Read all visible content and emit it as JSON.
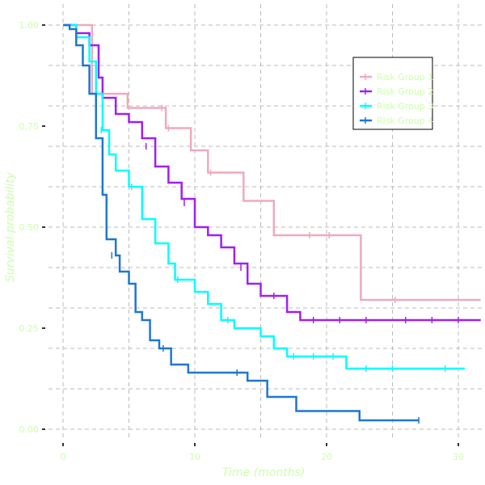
{
  "chart_data": {
    "type": "line",
    "subtype": "kaplan-meier step",
    "xlabel": "Time (months)",
    "ylabel": "Survival probability",
    "xlim": [
      0,
      31.7
    ],
    "ylim": [
      0,
      1
    ],
    "xticks": [
      "0",
      "10",
      "20",
      "30"
    ],
    "yticks": [
      "0.00",
      "0.25",
      "0.50",
      "0.75",
      "1.00"
    ],
    "grid": true,
    "legend_position": "top-right",
    "text_color": "#ccffaa",
    "series": [
      {
        "name": "Risk Group 1",
        "color": "#eeaabb",
        "points": [
          [
            0,
            1
          ],
          [
            2.2,
            0.83
          ],
          [
            4.9,
            0.795
          ],
          [
            7.8,
            0.745
          ],
          [
            9.7,
            0.69
          ],
          [
            11,
            0.635
          ],
          [
            13.7,
            0.565
          ],
          [
            16,
            0.48
          ],
          [
            22.6,
            0.32
          ],
          [
            31.7,
            0.32
          ]
        ],
        "censor": [
          [
            7.5,
            0.795
          ],
          [
            8,
            0.745
          ],
          [
            11.2,
            0.635
          ],
          [
            18.7,
            0.48
          ],
          [
            20.2,
            0.48
          ],
          [
            25.2,
            0.32
          ]
        ]
      },
      {
        "name": "Risk Group 2",
        "color": "#a020f0",
        "points": [
          [
            0,
            1
          ],
          [
            1,
            0.98
          ],
          [
            2,
            0.95
          ],
          [
            2.7,
            0.87
          ],
          [
            3,
            0.82
          ],
          [
            4,
            0.78
          ],
          [
            5,
            0.76
          ],
          [
            6,
            0.72
          ],
          [
            7,
            0.65
          ],
          [
            8,
            0.61
          ],
          [
            9,
            0.57
          ],
          [
            10,
            0.5
          ],
          [
            11,
            0.48
          ],
          [
            12,
            0.45
          ],
          [
            13,
            0.41
          ],
          [
            14,
            0.36
          ],
          [
            15,
            0.33
          ],
          [
            16.5,
            0.33
          ],
          [
            17,
            0.29
          ],
          [
            18,
            0.27
          ],
          [
            31.7,
            0.27
          ]
        ],
        "censor": [
          [
            6.3,
            0.7
          ],
          [
            9.2,
            0.56
          ],
          [
            13.5,
            0.4
          ],
          [
            16,
            0.33
          ],
          [
            19,
            0.27
          ],
          [
            21,
            0.27
          ],
          [
            23,
            0.27
          ],
          [
            26,
            0.27
          ],
          [
            28,
            0.27
          ],
          [
            30,
            0.27
          ]
        ]
      },
      {
        "name": "Risk Group 3",
        "color": "#00ffff",
        "points": [
          [
            0,
            1
          ],
          [
            1,
            0.97
          ],
          [
            2,
            0.91
          ],
          [
            2.5,
            0.83
          ],
          [
            3,
            0.74
          ],
          [
            3.5,
            0.68
          ],
          [
            4,
            0.64
          ],
          [
            5,
            0.6
          ],
          [
            6,
            0.52
          ],
          [
            7,
            0.46
          ],
          [
            8,
            0.41
          ],
          [
            8.5,
            0.37
          ],
          [
            10,
            0.34
          ],
          [
            11,
            0.31
          ],
          [
            12,
            0.27
          ],
          [
            13,
            0.25
          ],
          [
            15,
            0.23
          ],
          [
            16,
            0.2
          ],
          [
            17,
            0.18
          ],
          [
            21.5,
            0.15
          ],
          [
            30.5,
            0.15
          ]
        ],
        "censor": [
          [
            2.9,
            0.74
          ],
          [
            5.2,
            0.6
          ],
          [
            8.7,
            0.37
          ],
          [
            12.5,
            0.27
          ],
          [
            17.5,
            0.18
          ],
          [
            19,
            0.18
          ],
          [
            20.5,
            0.18
          ],
          [
            23,
            0.15
          ],
          [
            25,
            0.15
          ],
          [
            29,
            0.15
          ]
        ]
      },
      {
        "name": "Risk Group 4",
        "color": "#1f77d0",
        "points": [
          [
            0,
            1
          ],
          [
            0.5,
            0.99
          ],
          [
            1,
            0.95
          ],
          [
            1.5,
            0.9
          ],
          [
            2,
            0.83
          ],
          [
            2.5,
            0.72
          ],
          [
            3,
            0.58
          ],
          [
            3.3,
            0.47
          ],
          [
            4,
            0.43
          ],
          [
            4.3,
            0.39
          ],
          [
            5,
            0.36
          ],
          [
            5.5,
            0.29
          ],
          [
            6,
            0.27
          ],
          [
            6.6,
            0.22
          ],
          [
            7.3,
            0.2
          ],
          [
            8.2,
            0.16
          ],
          [
            9.5,
            0.14
          ],
          [
            14,
            0.12
          ],
          [
            15.5,
            0.08
          ],
          [
            17.7,
            0.045
          ],
          [
            22.5,
            0.022
          ],
          [
            27,
            0.022
          ]
        ],
        "censor": [
          [
            3.7,
            0.43
          ],
          [
            7.6,
            0.2
          ],
          [
            13.2,
            0.14
          ],
          [
            27,
            0.022
          ]
        ]
      }
    ]
  }
}
